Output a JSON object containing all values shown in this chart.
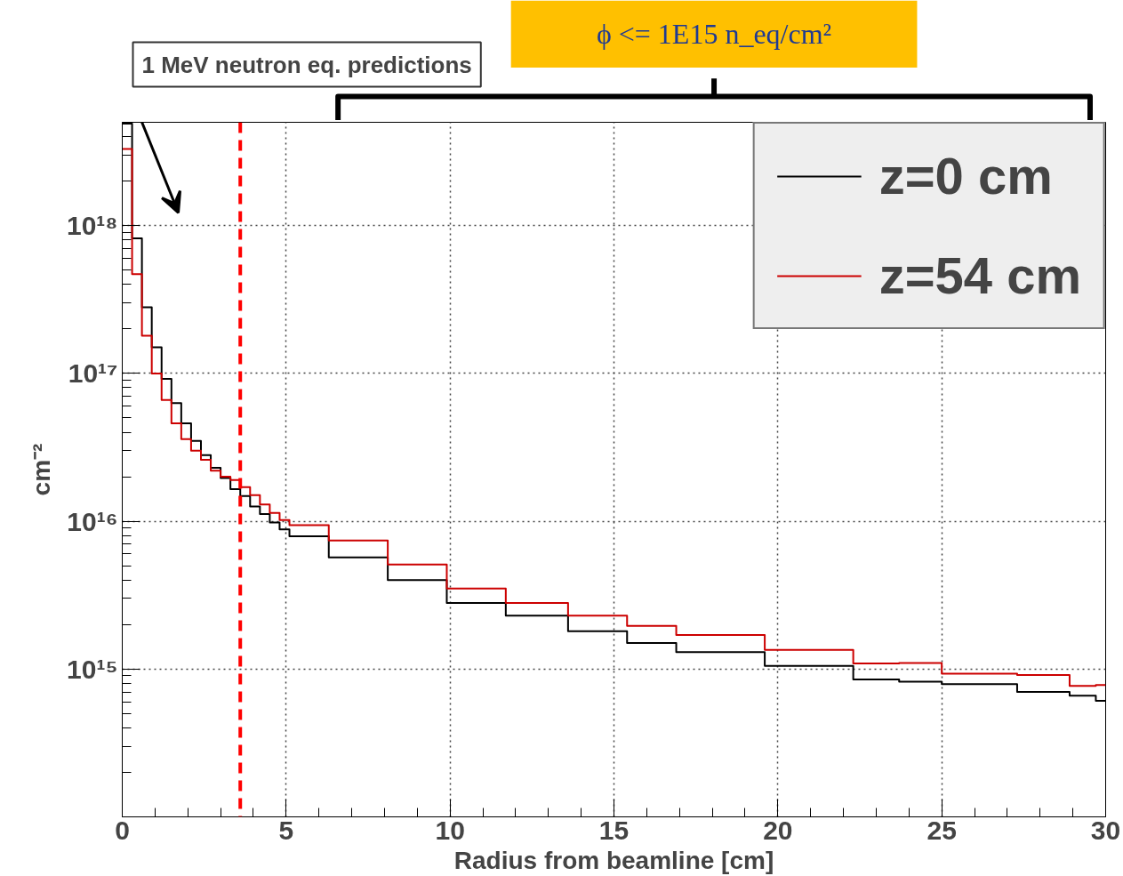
{
  "chart_data": {
    "type": "step",
    "title": "1 MeV neutron eq. predictions",
    "xlabel": "Radius from beamline [cm]",
    "ylabel": "cm⁻²",
    "annotations": [
      "ϕ <= 1E15 n_eq/cm²"
    ],
    "x": [
      0,
      0.3,
      0.6,
      0.9,
      1.2,
      1.5,
      1.8,
      2.1,
      2.4,
      2.7,
      3.0,
      3.3,
      3.6,
      3.9,
      4.2,
      4.5,
      4.8,
      5.1,
      6.3,
      8.1,
      9.9,
      11.7,
      13.6,
      15.4,
      16.9,
      19.6,
      22.3,
      23.7,
      25.0,
      27.3,
      28.9,
      29.7,
      30
    ],
    "series": [
      {
        "name": "z=0 cm",
        "color": "#000000",
        "values": [
          4.9e+18,
          8.2e+17,
          2.8e+17,
          1.5e+17,
          9.2e+16,
          6.3e+16,
          4.6e+16,
          3.5e+16,
          2.8e+16,
          2.3e+16,
          1.96e+16,
          1.65e+16,
          1.48e+16,
          1.26e+16,
          1.12e+16,
          9800000000000000.0,
          8800000000000000.0,
          7900000000000000.0,
          5700000000000000.0,
          4000000000000000.0,
          2800000000000000.0,
          2300000000000000.0,
          1800000000000000.0,
          1500000000000000.0,
          1300000000000000.0,
          1050000000000000.0,
          850000000000000.0,
          820000000000000.0,
          790000000000000.0,
          700000000000000.0,
          660000000000000.0,
          610000000000000.0,
          610000000000000.0
        ]
      },
      {
        "name": "z=54 cm",
        "color": "#cc0000",
        "values": [
          3.3e+18,
          4.7e+17,
          1.8e+17,
          1e+17,
          6.6e+16,
          4.6e+16,
          3.6e+16,
          3e+16,
          2.6e+16,
          2.2e+16,
          2e+16,
          1.9e+16,
          1.7e+16,
          1.5e+16,
          1.3e+16,
          1.14e+16,
          1.02e+16,
          9400000000000000.0,
          7400000000000000.0,
          5100000000000000.0,
          3500000000000000.0,
          2800000000000000.0,
          2300000000000000.0,
          1960000000000000.0,
          1700000000000000.0,
          1350000000000000.0,
          1090000000000000.0,
          1100000000000000.0,
          930000000000000.0,
          910000000000000.0,
          770000000000000.0,
          780000000000000.0,
          780000000000000.0
        ]
      }
    ],
    "xlim": [
      0,
      30
    ],
    "xticks": [
      0,
      5,
      10,
      15,
      20,
      25,
      30
    ],
    "ylim": [
      100000000000000.0,
      5e+18
    ],
    "yticks": [
      {
        "value": 1000000000000000.0,
        "label": "10¹⁵"
      },
      {
        "value": 1e+16,
        "label": "10¹⁶"
      },
      {
        "value": 1e+17,
        "label": "10¹⁷"
      },
      {
        "value": 1e+18,
        "label": "10¹⁸"
      }
    ],
    "log": true,
    "grid": true,
    "legend": "top right",
    "ref_lines": [
      {
        "axis": "x",
        "value": 3.6,
        "color": "#ff0000",
        "line_style": "dashed"
      }
    ]
  }
}
